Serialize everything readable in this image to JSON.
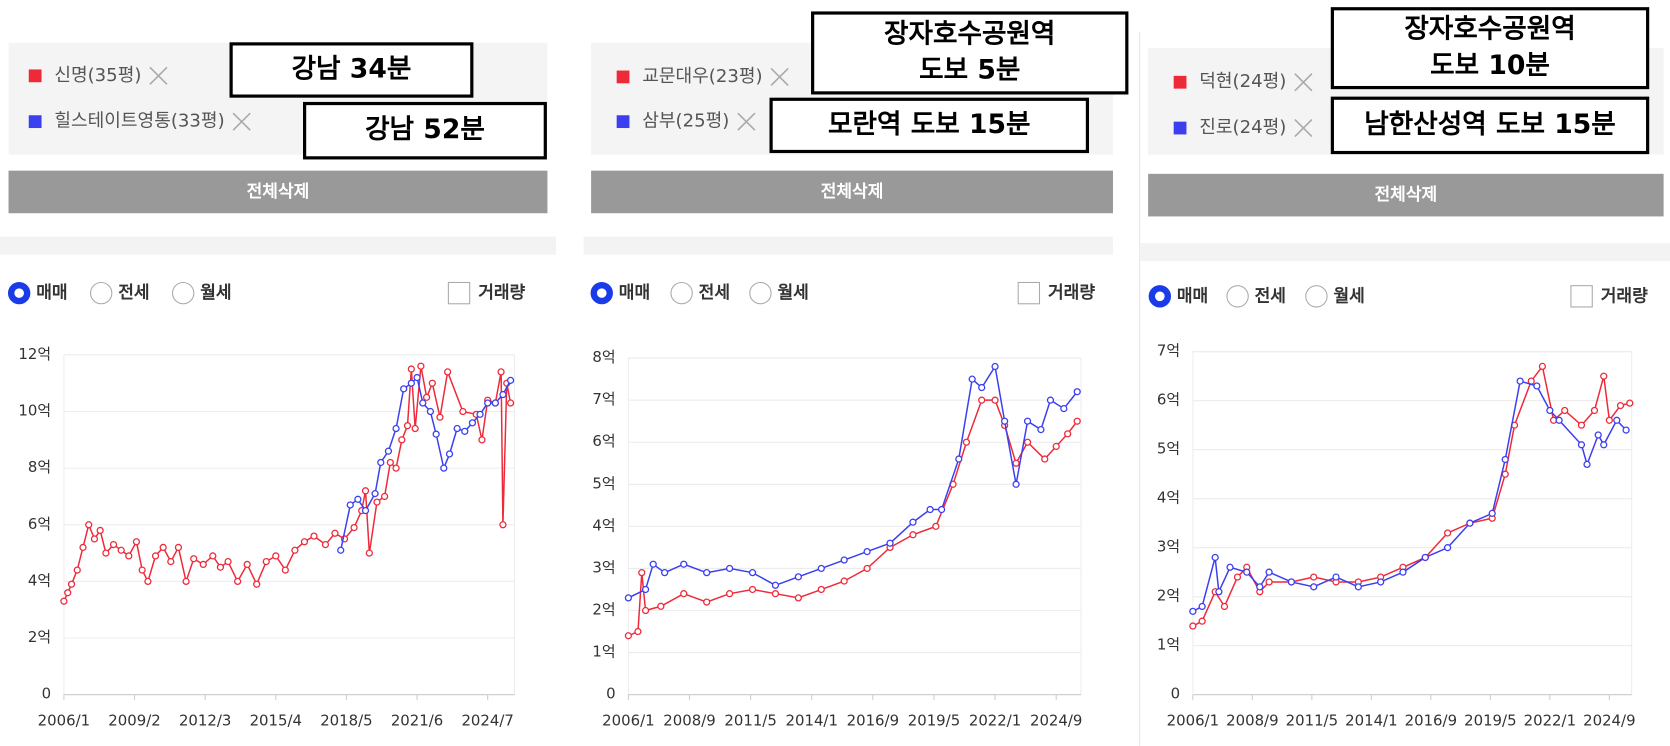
{
  "panels": [
    {
      "annotations": [
        [
          "강남 34분"
        ],
        [
          "강남 52분"
        ]
      ],
      "delete_button": "전체삭제",
      "radios": [
        "매매",
        "전세",
        "월세"
      ],
      "checkbox": "거래량"
    },
    {
      "annotations": [
        [
          "장자호수공원역",
          "도보 5분"
        ],
        [
          "모란역 도보 15분"
        ]
      ],
      "delete_button": "전체삭제",
      "radios": [
        "매매",
        "전세",
        "월세"
      ],
      "checkbox": "거래량"
    },
    {
      "annotations": [
        [
          "장자호수공원역",
          "도보 10분"
        ],
        [
          "남한산성역 도보 15분"
        ]
      ],
      "delete_button": "전체삭제",
      "radios": [
        "매매",
        "전세",
        "월세"
      ],
      "checkbox": "거래량"
    }
  ],
  "chart_data": [
    {
      "type": "line",
      "xlim": [
        "2006/1",
        "2025/9"
      ],
      "xticks": [
        "2006/1",
        "2009/2",
        "2012/3",
        "2015/4",
        "2018/5",
        "2021/6",
        "2024/7"
      ],
      "ylim": [
        0,
        12
      ],
      "yticks": [
        0,
        {
          "value": 2,
          "label": "2억"
        },
        {
          "value": 4,
          "label": "4억"
        },
        {
          "value": 6,
          "label": "6억"
        },
        {
          "value": 8,
          "label": "8억"
        },
        {
          "value": 10,
          "label": "10억"
        },
        {
          "value": 12,
          "label": "12억"
        }
      ],
      "grid": true,
      "series": [
        {
          "name": "신명(35평)",
          "color": "#ee2a3a",
          "x": [
            "2006/1",
            "2006/3",
            "2006/5",
            "2006/8",
            "2006/11",
            "2007/2",
            "2007/5",
            "2007/8",
            "2007/11",
            "2008/3",
            "2008/7",
            "2008/11",
            "2009/3",
            "2009/6",
            "2009/9",
            "2010/1",
            "2010/5",
            "2010/9",
            "2011/1",
            "2011/5",
            "2011/9",
            "2012/2",
            "2012/7",
            "2012/11",
            "2013/3",
            "2013/8",
            "2014/1",
            "2014/6",
            "2014/11",
            "2015/4",
            "2015/9",
            "2016/2",
            "2016/7",
            "2016/12",
            "2017/6",
            "2017/11",
            "2018/4",
            "2018/9",
            "2019/1",
            "2019/3",
            "2019/5",
            "2019/9",
            "2020/1",
            "2020/4",
            "2020/7",
            "2020/10",
            "2021/1",
            "2021/3",
            "2021/5",
            "2021/8",
            "2021/11",
            "2022/2",
            "2022/6",
            "2022/10",
            "2023/6",
            "2024/1",
            "2024/4",
            "2024/7",
            "2024/11",
            "2025/2",
            "2025/3",
            "2025/5",
            "2025/7"
          ],
          "values": [
            3.3,
            3.6,
            3.9,
            4.4,
            5.2,
            6.0,
            5.5,
            5.8,
            5.0,
            5.3,
            5.1,
            4.9,
            5.4,
            4.4,
            4.0,
            4.9,
            5.2,
            4.7,
            5.2,
            4.0,
            4.8,
            4.6,
            4.9,
            4.5,
            4.7,
            4.0,
            4.6,
            3.9,
            4.7,
            4.9,
            4.4,
            5.1,
            5.4,
            5.6,
            5.3,
            5.7,
            5.5,
            5.9,
            6.5,
            7.2,
            5.0,
            6.8,
            7.0,
            8.2,
            8.0,
            9.0,
            9.5,
            11.5,
            9.4,
            11.6,
            10.5,
            11.0,
            9.8,
            11.4,
            10.0,
            9.9,
            9.0,
            10.4,
            10.3,
            11.4,
            6.0,
            11.0,
            10.3
          ]
        },
        {
          "name": "힐스테이트영통(33평)",
          "color": "#3b3ff0",
          "x": [
            "2018/2",
            "2018/7",
            "2018/11",
            "2019/3",
            "2019/8",
            "2019/11",
            "2020/3",
            "2020/7",
            "2020/11",
            "2021/3",
            "2021/6",
            "2021/9",
            "2022/1",
            "2022/4",
            "2022/8",
            "2022/11",
            "2023/3",
            "2023/7",
            "2023/11",
            "2024/3",
            "2024/7",
            "2024/11",
            "2025/3",
            "2025/7"
          ],
          "values": [
            5.1,
            6.7,
            6.9,
            6.5,
            7.1,
            8.2,
            8.6,
            9.4,
            10.8,
            11.0,
            11.2,
            10.3,
            10.0,
            9.2,
            8.0,
            8.5,
            9.4,
            9.3,
            9.6,
            9.9,
            10.3,
            10.3,
            10.6,
            11.1
          ]
        }
      ]
    },
    {
      "type": "line",
      "xlim": [
        "2006/1",
        "2025/10"
      ],
      "xticks": [
        "2006/1",
        "2008/9",
        "2011/5",
        "2014/1",
        "2016/9",
        "2019/5",
        "2022/1",
        "2024/9"
      ],
      "ylim": [
        0,
        8
      ],
      "yticks": [
        0,
        {
          "value": 1,
          "label": "1억"
        },
        {
          "value": 2,
          "label": "2억"
        },
        {
          "value": 3,
          "label": "3억"
        },
        {
          "value": 4,
          "label": "4억"
        },
        {
          "value": 5,
          "label": "5억"
        },
        {
          "value": 6,
          "label": "6억"
        },
        {
          "value": 7,
          "label": "7억"
        },
        {
          "value": 8,
          "label": "8억"
        }
      ],
      "grid": true,
      "series": [
        {
          "name": "교문대우(23평)",
          "color": "#ee2a3a",
          "x": [
            "2006/1",
            "2006/6",
            "2006/8",
            "2006/10",
            "2007/6",
            "2008/6",
            "2009/6",
            "2010/6",
            "2011/6",
            "2012/6",
            "2013/6",
            "2014/6",
            "2015/6",
            "2016/6",
            "2017/6",
            "2018/6",
            "2019/6",
            "2020/3",
            "2020/10",
            "2021/6",
            "2022/1",
            "2022/6",
            "2022/12",
            "2023/6",
            "2024/3",
            "2024/9",
            "2025/3",
            "2025/8"
          ],
          "values": [
            1.4,
            1.5,
            2.9,
            2.0,
            2.1,
            2.4,
            2.2,
            2.4,
            2.5,
            2.4,
            2.3,
            2.5,
            2.7,
            3.0,
            3.5,
            3.8,
            4.0,
            5.0,
            6.0,
            7.0,
            7.0,
            6.4,
            5.5,
            6.0,
            5.6,
            5.9,
            6.2,
            6.5
          ]
        },
        {
          "name": "삼부(25평)",
          "color": "#3b3ff0",
          "x": [
            "2006/1",
            "2006/10",
            "2007/2",
            "2007/8",
            "2008/6",
            "2009/6",
            "2010/6",
            "2011/6",
            "2012/6",
            "2013/6",
            "2014/6",
            "2015/6",
            "2016/6",
            "2017/6",
            "2018/6",
            "2019/3",
            "2019/9",
            "2020/6",
            "2021/1",
            "2021/6",
            "2022/1",
            "2022/6",
            "2022/12",
            "2023/6",
            "2024/1",
            "2024/6",
            "2025/1",
            "2025/8"
          ],
          "values": [
            2.3,
            2.5,
            3.1,
            2.9,
            3.1,
            2.9,
            3.0,
            2.9,
            2.6,
            2.8,
            3.0,
            3.2,
            3.4,
            3.6,
            4.1,
            4.4,
            4.4,
            5.6,
            7.5,
            7.3,
            7.8,
            6.5,
            5.0,
            6.5,
            6.3,
            7.0,
            6.8,
            7.2
          ]
        }
      ]
    },
    {
      "type": "line",
      "xlim": [
        "2006/1",
        "2025/9"
      ],
      "xticks": [
        "2006/1",
        "2008/9",
        "2011/5",
        "2014/1",
        "2016/9",
        "2019/5",
        "2022/1",
        "2024/9"
      ],
      "ylim": [
        0,
        7
      ],
      "yticks": [
        0,
        {
          "value": 1,
          "label": "1억"
        },
        {
          "value": 2,
          "label": "2억"
        },
        {
          "value": 3,
          "label": "3억"
        },
        {
          "value": 4,
          "label": "4억"
        },
        {
          "value": 5,
          "label": "5억"
        },
        {
          "value": 6,
          "label": "6억"
        },
        {
          "value": 7,
          "label": "7억"
        }
      ],
      "grid": true,
      "series": [
        {
          "name": "덕현(24평)",
          "color": "#ee2a3a",
          "x": [
            "2006/1",
            "2006/6",
            "2007/1",
            "2007/6",
            "2008/1",
            "2008/6",
            "2009/1",
            "2009/6",
            "2010/6",
            "2011/6",
            "2012/6",
            "2013/6",
            "2014/6",
            "2015/6",
            "2016/6",
            "2017/6",
            "2018/6",
            "2019/6",
            "2020/1",
            "2020/6",
            "2021/3",
            "2021/9",
            "2022/3",
            "2022/9",
            "2023/6",
            "2024/1",
            "2024/6",
            "2024/9",
            "2025/3",
            "2025/8"
          ],
          "values": [
            1.4,
            1.5,
            2.1,
            1.8,
            2.4,
            2.6,
            2.1,
            2.3,
            2.3,
            2.4,
            2.3,
            2.3,
            2.4,
            2.6,
            2.8,
            3.3,
            3.5,
            3.6,
            4.5,
            5.5,
            6.4,
            6.7,
            5.6,
            5.8,
            5.5,
            5.8,
            6.5,
            5.6,
            5.9,
            5.95
          ]
        },
        {
          "name": "진로(24평)",
          "color": "#3b3ff0",
          "x": [
            "2006/1",
            "2006/6",
            "2007/1",
            "2007/3",
            "2007/9",
            "2008/6",
            "2009/1",
            "2009/6",
            "2010/6",
            "2011/6",
            "2012/6",
            "2013/6",
            "2014/6",
            "2015/6",
            "2016/6",
            "2017/6",
            "2018/6",
            "2019/6",
            "2020/1",
            "2020/9",
            "2021/6",
            "2022/1",
            "2022/6",
            "2023/6",
            "2023/9",
            "2024/3",
            "2024/6",
            "2025/1",
            "2025/6"
          ],
          "values": [
            1.7,
            1.8,
            2.8,
            2.1,
            2.6,
            2.5,
            2.2,
            2.5,
            2.3,
            2.2,
            2.4,
            2.2,
            2.3,
            2.5,
            2.8,
            3.0,
            3.5,
            3.7,
            4.8,
            6.4,
            6.3,
            5.8,
            5.6,
            5.1,
            4.7,
            5.3,
            5.1,
            5.6,
            5.4
          ]
        }
      ]
    }
  ]
}
